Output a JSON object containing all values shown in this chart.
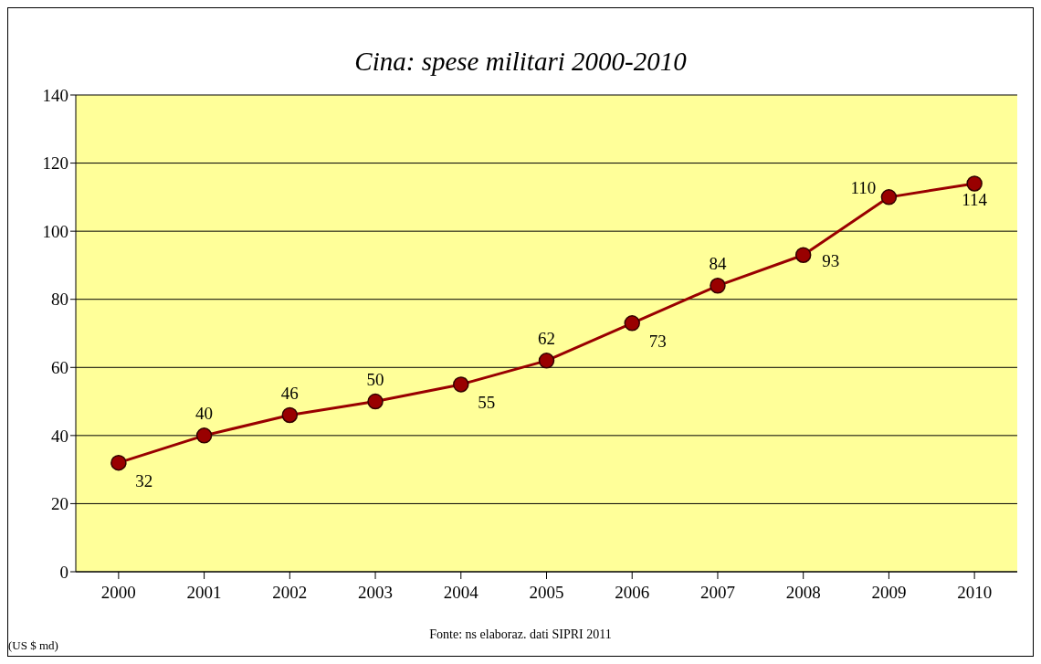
{
  "chart_data": {
    "type": "line",
    "title": "Cina: spese militari 2000-2010",
    "categories": [
      "2000",
      "2001",
      "2002",
      "2003",
      "2004",
      "2005",
      "2006",
      "2007",
      "2008",
      "2009",
      "2010"
    ],
    "series": [
      {
        "color": "#990000",
        "values": [
          32,
          40,
          46,
          50,
          55,
          62,
          73,
          84,
          93,
          110,
          114
        ]
      }
    ],
    "ylim": [
      0,
      140
    ],
    "yticks": [
      0,
      20,
      40,
      60,
      80,
      100,
      120,
      140
    ],
    "grid": "y",
    "marker": "circle",
    "line_style": "solid",
    "data_labels": true,
    "legend": false,
    "annotations": [
      "Fonte: ns elaboraz. dati SIPRI 2011",
      "(US $ md)"
    ]
  }
}
